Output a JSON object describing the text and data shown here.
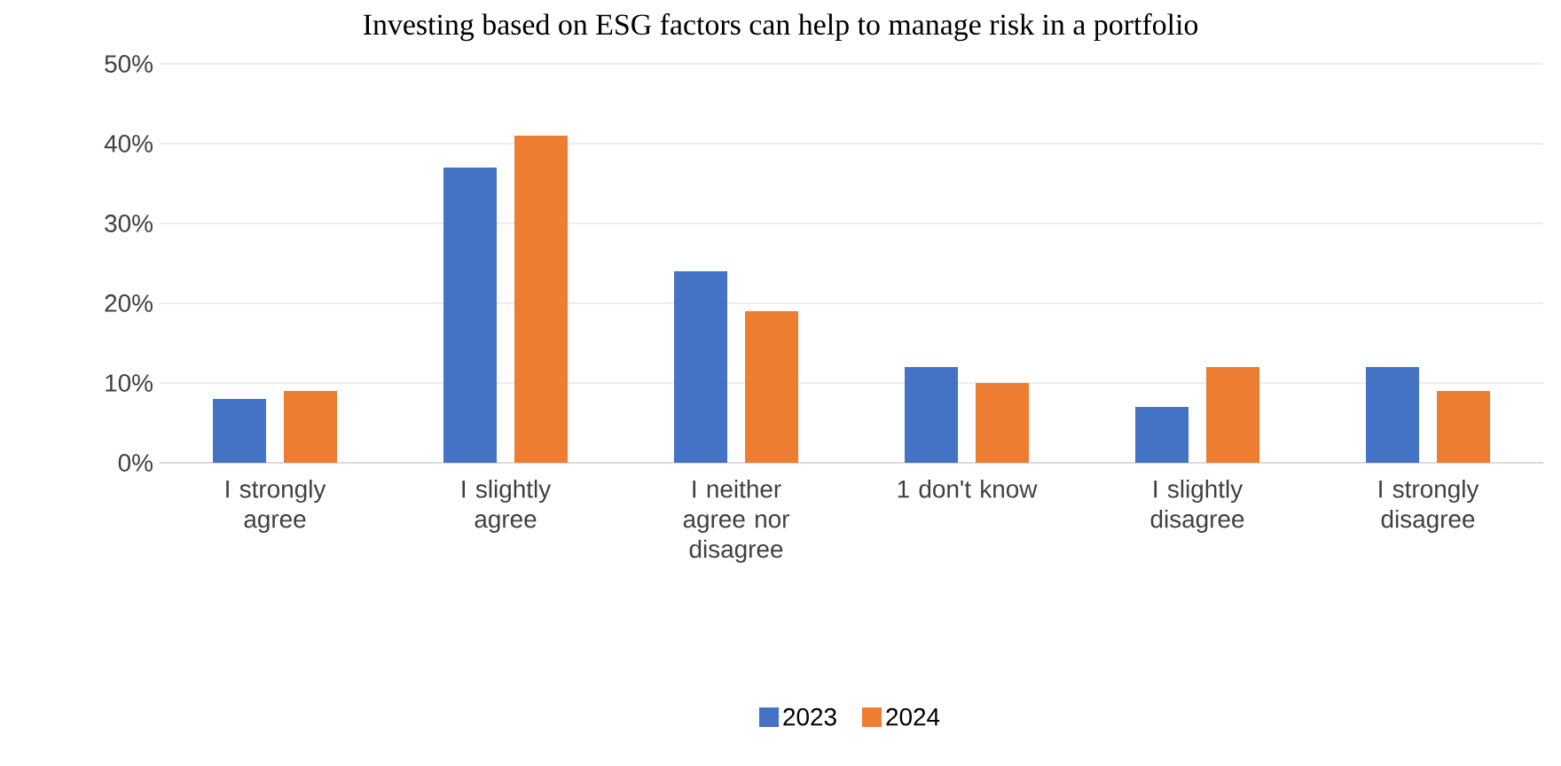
{
  "chart_data": {
    "type": "bar",
    "title": "Investing based on ESG factors can help to manage risk in a portfolio",
    "categories": [
      "I strongly agree",
      "I slightly agree",
      "I neither agree nor disagree",
      "1 don't know",
      "I slightly disagree",
      "I strongly disagree"
    ],
    "series": [
      {
        "name": "2023",
        "color": "#4472c4",
        "values": [
          8,
          37,
          24,
          12,
          7,
          12
        ]
      },
      {
        "name": "2024",
        "color": "#ed7d31",
        "values": [
          9,
          41,
          19,
          10,
          12,
          9
        ]
      }
    ],
    "ylim": [
      0,
      50
    ],
    "yticks": [
      {
        "value": 0,
        "label": "0%"
      },
      {
        "value": 10,
        "label": "10%"
      },
      {
        "value": 20,
        "label": "20%"
      },
      {
        "value": 30,
        "label": "30%"
      },
      {
        "value": 40,
        "label": "40%"
      },
      {
        "value": 50,
        "label": "50%"
      }
    ],
    "grid": "y",
    "legend": "bottom"
  }
}
